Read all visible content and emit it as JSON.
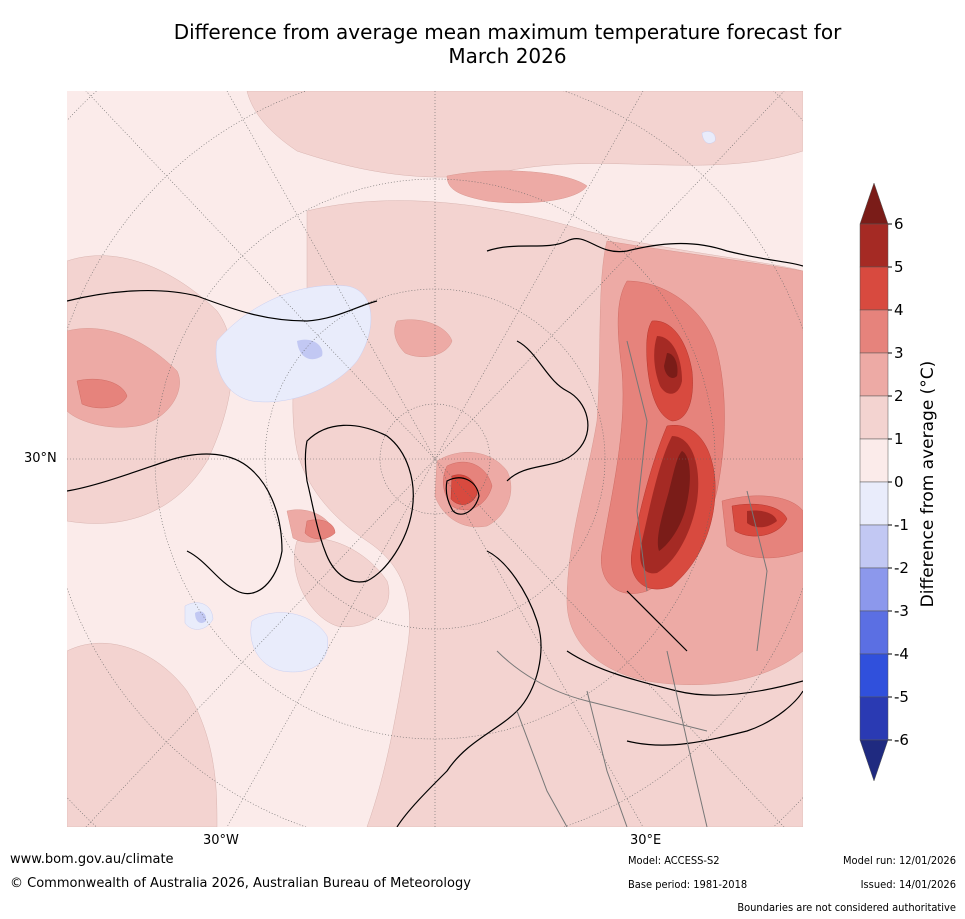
{
  "title_line1": "Difference from average mean maximum temperature forecast for",
  "title_line2": "March 2026",
  "map": {
    "labels": {
      "lat30": "30°N",
      "lon30w": "30°W",
      "lon30e": "30°E"
    }
  },
  "legend": {
    "title": "Difference from average (°C)",
    "ticks": [
      "6",
      "5",
      "4",
      "3",
      "2",
      "1",
      "0",
      "-1",
      "-2",
      "-3",
      "-4",
      "-5",
      "-6"
    ],
    "colors": {
      "gt6": "#7a1c18",
      "c5_6": "#a52a24",
      "c4_5": "#d84a3f",
      "c3_4": "#e6837c",
      "c2_3": "#edaaa5",
      "c1_2": "#f3d3d0",
      "c0_1": "#fbebea",
      "cm1_0": "#e9ecfb",
      "cm2_m1": "#c2c8f3",
      "cm3_m2": "#8c98ec",
      "cm4_m3": "#5b6fe3",
      "cm5_m4": "#3050dc",
      "cm6_m5": "#2a3ab3",
      "lt_m6": "#1f2a80"
    }
  },
  "footer": {
    "url": "www.bom.gov.au/climate",
    "copyright": "© Commonwealth of Australia 2026, Australian Bureau of Meteorology",
    "model": "Model: ACCESS-S2",
    "base_period": "Base period: 1981-2018",
    "model_run": "Model run: 12/01/2026",
    "issued": "Issued: 14/01/2026",
    "disclaimer": "Boundaries are not considered authoritative"
  }
}
